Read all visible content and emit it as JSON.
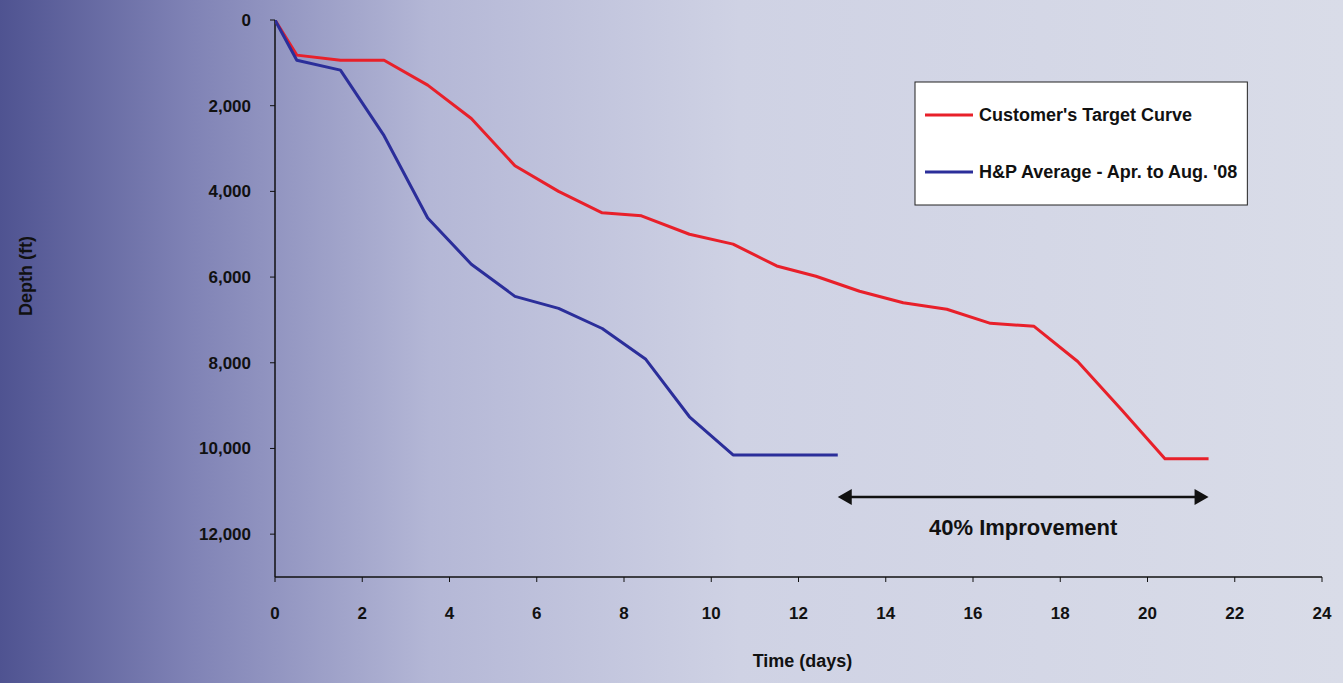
{
  "chart_data": {
    "type": "line",
    "x_label": "Time (days)",
    "y_label": "Depth (ft)",
    "annotation": "40% Improvement",
    "xlim": [
      0,
      24
    ],
    "ylim": [
      0,
      13000
    ],
    "xticks": [
      0,
      2,
      4,
      6,
      8,
      10,
      12,
      14,
      16,
      18,
      20,
      22,
      24
    ],
    "yticks": [
      0,
      {
        "value": 2000,
        "label": "2,000"
      },
      {
        "value": 4000,
        "label": "4,000"
      },
      {
        "value": 6000,
        "label": "6,000"
      },
      {
        "value": 8000,
        "label": "8,000"
      },
      {
        "value": 10000,
        "label": "10,000"
      },
      {
        "value": 12000,
        "label": "12,000"
      }
    ],
    "grid": false,
    "legend": "upper right",
    "series": [
      {
        "name": "Customer's Target Curve",
        "color": "#e8202a",
        "line_style": "solid",
        "x": [
          0,
          0.5,
          1.5,
          2.5,
          3.5,
          4.5,
          5.5,
          6.5,
          7.5,
          8.4,
          9.5,
          10.5,
          11.5,
          12.4,
          13.4,
          14.4,
          15.4,
          16.4,
          17.4,
          18.4,
          19.4,
          20.4,
          21.4
        ],
        "values": [
          0,
          820,
          940,
          940,
          1520,
          2300,
          3400,
          4000,
          4500,
          4570,
          5000,
          5230,
          5740,
          5980,
          6330,
          6600,
          6750,
          7080,
          7150,
          7970,
          9090,
          10240,
          10240
        ]
      },
      {
        "name": "H&P Average - Apr. to Aug. '08",
        "color": "#2b2e9a",
        "line_style": "solid",
        "x": [
          0,
          0.5,
          1.5,
          2.5,
          3.5,
          4.5,
          5.5,
          6.5,
          7.5,
          8.5,
          9.5,
          10.5,
          12.9
        ],
        "values": [
          0,
          940,
          1170,
          2700,
          4620,
          5700,
          6450,
          6730,
          7200,
          7920,
          9260,
          10150,
          10150
        ]
      }
    ]
  }
}
